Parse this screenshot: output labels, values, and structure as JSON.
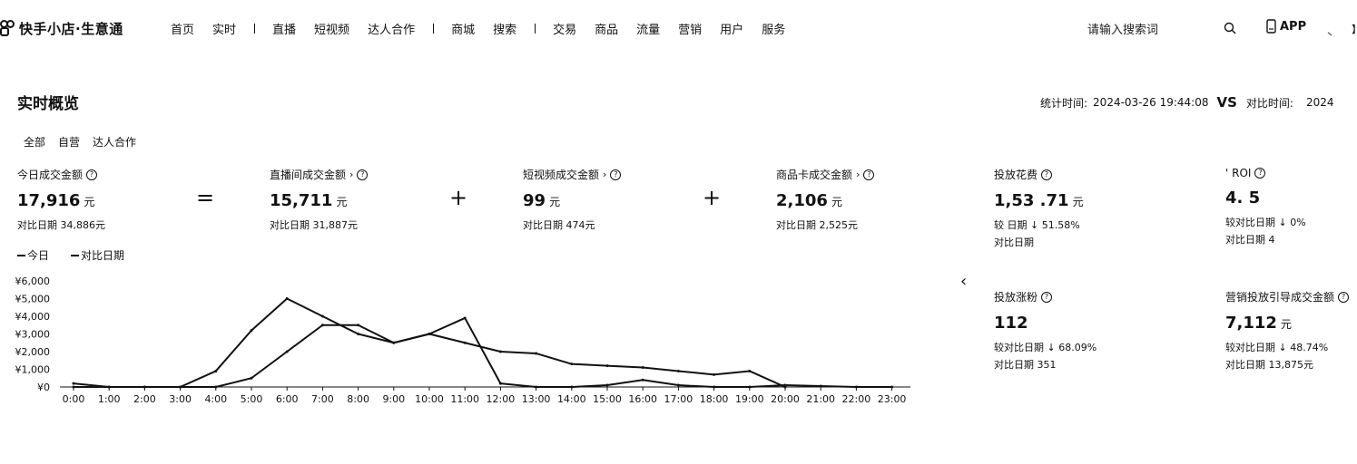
{
  "header": {
    "logo_text": "快手小店·生意通",
    "nav": [
      {
        "label": "首页"
      },
      {
        "label": "实时"
      },
      {
        "sep": true
      },
      {
        "label": "直播"
      },
      {
        "label": "短视频"
      },
      {
        "label": "达人合作"
      },
      {
        "sep": true
      },
      {
        "label": "商城"
      },
      {
        "label": "搜索"
      },
      {
        "sep": true
      },
      {
        "label": "交易"
      },
      {
        "label": "商品"
      },
      {
        "label": "流量"
      },
      {
        "label": "营销"
      },
      {
        "label": "用户"
      },
      {
        "label": "服务"
      }
    ],
    "search_placeholder": "请输入搜索词",
    "app_label": "APP",
    "corner_glyph": "丶",
    "corner_glyph2": "】"
  },
  "page": {
    "title": "实时概览",
    "stat_time_label": "统计时间:",
    "stat_time_value": "2024-03-26 19:44:08",
    "vs_label": "VS",
    "compare_time_label": "对比时间:",
    "compare_time_value": "2024"
  },
  "filters": [
    "全部",
    "自营",
    "达人合作"
  ],
  "metrics": {
    "today": {
      "label": "今日成交金额",
      "value": "17,916",
      "unit": "元",
      "compare": "对比日期 34,886元"
    },
    "live": {
      "label": "直播间成交金额",
      "value": "15,711",
      "unit": "元",
      "compare": "对比日期 31,887元"
    },
    "video": {
      "label": "短视频成交金额",
      "value": "99",
      "unit": "元",
      "compare": "对比日期 474元"
    },
    "card": {
      "label": "商品卡成交金额",
      "value": "2,106",
      "unit": "元",
      "compare": "对比日期 2,525元"
    },
    "spend": {
      "label": "投放花费",
      "value": "1,53 .71",
      "unit": "元",
      "change": "较 日期 ↓ 51.58%",
      "compare": "对比日期"
    },
    "roi": {
      "label": "' ROI",
      "value": "4. 5",
      "change": "较对比日期 ↓ 0%",
      "compare": "对比日期 4"
    },
    "clicks": {
      "label": "投放涨粉",
      "value": "112",
      "change": "较对比日期 ↓ 68.09%",
      "compare": "对比日期 351"
    },
    "marketing": {
      "label": "营销投放引导成交金额",
      "value": "7,112",
      "unit": "元",
      "change": "较对比日期 ↓ 48.74%",
      "compare": "对比日期 13,875元"
    }
  },
  "operators": {
    "equals": "=",
    "plus": "+"
  },
  "legend": {
    "today": "今日",
    "compare": "对比日期"
  },
  "chart_data": {
    "type": "line",
    "x": [
      "0:00",
      "1:00",
      "2:00",
      "3:00",
      "4:00",
      "5:00",
      "6:00",
      "7:00",
      "8:00",
      "9:00",
      "10:00",
      "11:00",
      "12:00",
      "13:00",
      "14:00",
      "15:00",
      "16:00",
      "17:00",
      "18:00",
      "19:00",
      "20:00",
      "21:00",
      "22:00",
      "23:00"
    ],
    "y_ticks": [
      "¥0",
      "¥1,000",
      "¥2,000",
      "¥3,000",
      "¥4,000",
      "¥5,000",
      "¥6,000"
    ],
    "ylim": [
      0,
      6000
    ],
    "series": [
      {
        "name": "今日",
        "values": [
          200,
          0,
          0,
          0,
          0,
          500,
          2000,
          3500,
          3500,
          2500,
          3000,
          2500,
          2000,
          1900,
          1300,
          1200,
          1100,
          900,
          700,
          900,
          0,
          null,
          null,
          null
        ]
      },
      {
        "name": "对比日期",
        "values": [
          0,
          0,
          0,
          0,
          900,
          3200,
          5000,
          4000,
          3000,
          2500,
          3000,
          3900,
          200,
          0,
          0,
          100,
          400,
          100,
          0,
          0,
          100,
          50,
          0,
          0
        ]
      }
    ]
  }
}
